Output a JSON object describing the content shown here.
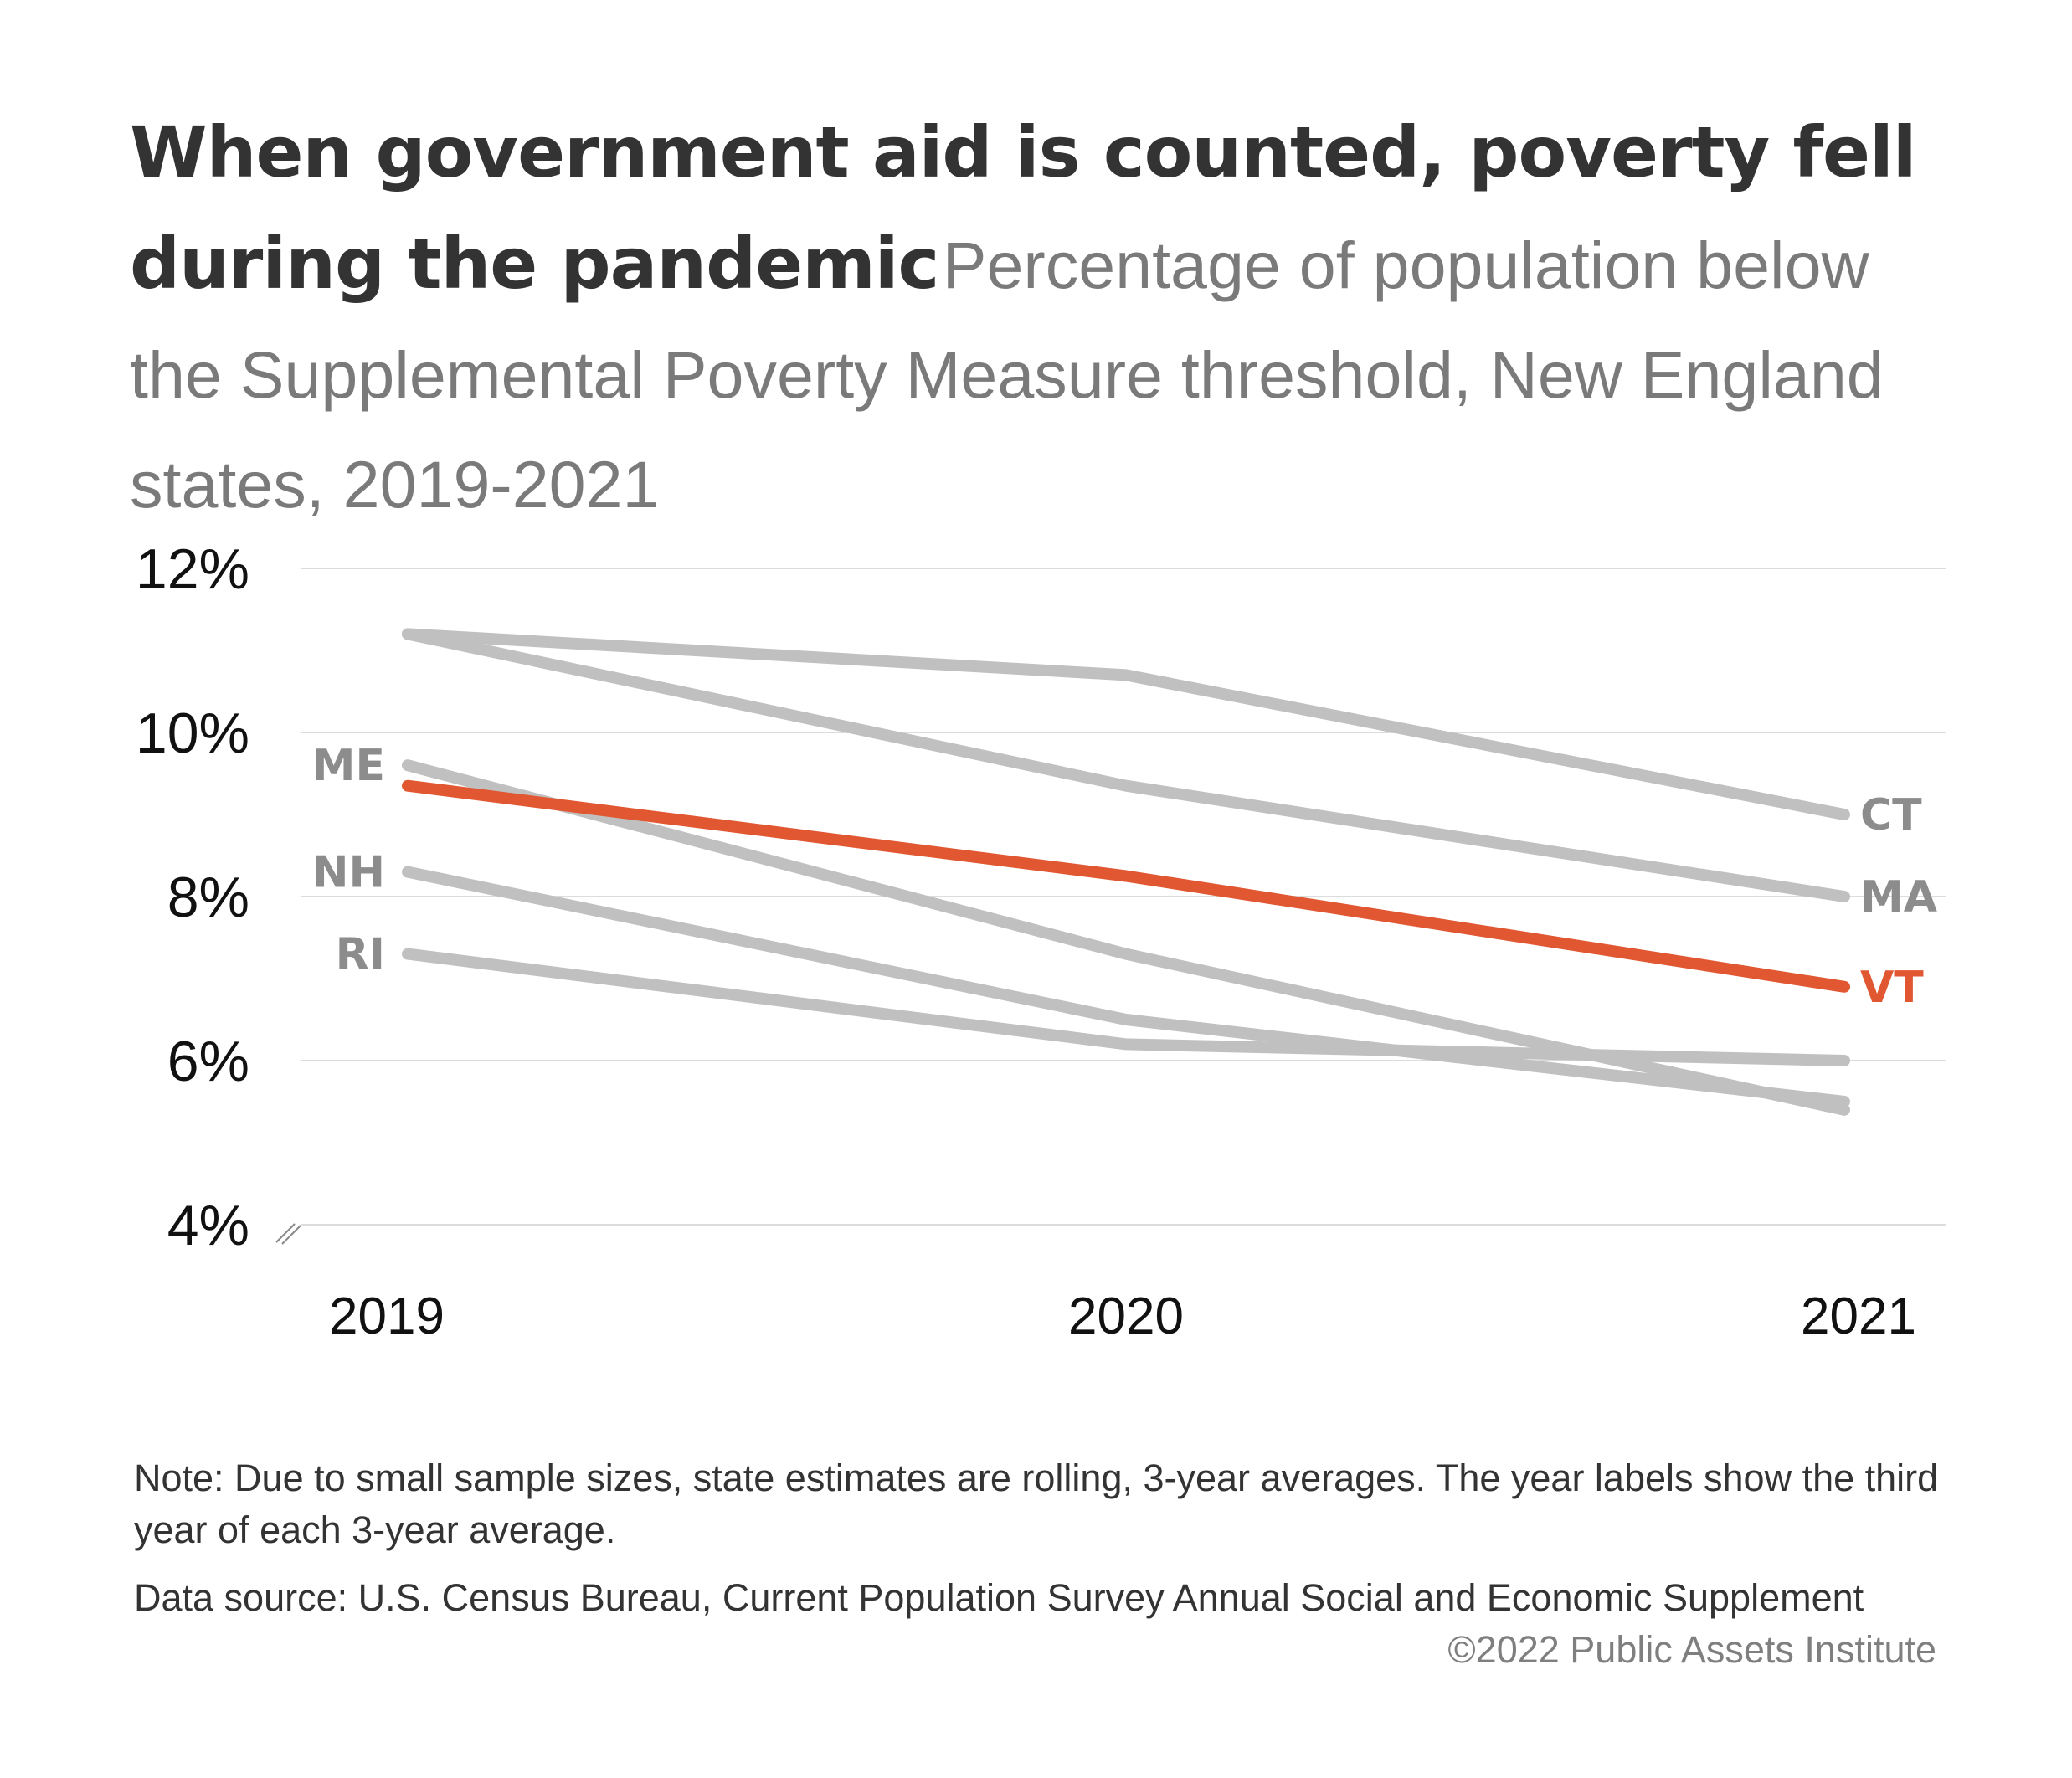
{
  "header": {
    "title": "When government aid is counted, poverty fell during the pandemic",
    "subtitle": "Percentage of population below the Supplemental Poverty Measure threshold, New England states, 2019-2021"
  },
  "chart_data": {
    "type": "line",
    "title": "When government aid is counted, poverty fell during the pandemic",
    "subtitle": "Percentage of population below the Supplemental Poverty Measure threshold, New England states, 2019-2021",
    "x": [
      "2019",
      "2020",
      "2021"
    ],
    "y_ticks": [
      "12%",
      "10%",
      "8%",
      "6%",
      "4%"
    ],
    "y_tick_values": [
      12,
      10,
      8,
      6,
      4
    ],
    "ylim": [
      4,
      12
    ],
    "axis_break": true,
    "grid": true,
    "series": [
      {
        "name": "CT",
        "label": "CT",
        "values": [
          11.2,
          10.7,
          9.0
        ],
        "color": "#c0c0c0",
        "label_color": "#8c8c8c",
        "label_side": "right"
      },
      {
        "name": "MA",
        "label": "MA",
        "values": [
          11.2,
          9.35,
          8.0
        ],
        "color": "#c0c0c0",
        "label_color": "#8c8c8c",
        "label_side": "right"
      },
      {
        "name": "ME",
        "label": "ME",
        "values": [
          9.6,
          7.3,
          5.4
        ],
        "color": "#c0c0c0",
        "label_color": "#8c8c8c",
        "label_side": "left"
      },
      {
        "name": "NH",
        "label": "NH",
        "values": [
          8.3,
          6.5,
          5.5
        ],
        "color": "#c0c0c0",
        "label_color": "#8c8c8c",
        "label_side": "left"
      },
      {
        "name": "RI",
        "label": "RI",
        "values": [
          7.3,
          6.2,
          6.0
        ],
        "color": "#c0c0c0",
        "label_color": "#8c8c8c",
        "label_side": "left"
      },
      {
        "name": "VT",
        "label": "VT",
        "values": [
          9.35,
          8.25,
          6.9
        ],
        "color": "#e05732",
        "label_color": "#e05732",
        "label_side": "right"
      }
    ]
  },
  "footer": {
    "note": "Note: Due to small sample sizes, state estimates are rolling, 3-year averages. The year labels show the third year of each 3-year average.",
    "source": "Data source: U.S. Census Bureau, Current Population Survey Annual Social and Economic Supplement",
    "credit": "©2022 Public Assets Institute"
  }
}
